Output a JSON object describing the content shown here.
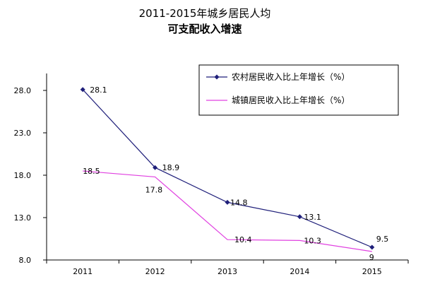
{
  "chart_data": {
    "type": "line",
    "title_lines": [
      "2011-2015年城乡居民人均",
      "可支配收入增速"
    ],
    "categories": [
      "2011",
      "2012",
      "2013",
      "2014",
      "2015"
    ],
    "y_ticks": [
      "8.0",
      "13.0",
      "18.0",
      "23.0",
      "28.0"
    ],
    "ylim": [
      8,
      30
    ],
    "legend_position": "top-right",
    "grid": false,
    "series": [
      {
        "name": "农村居民收入比上年增长（%）",
        "values": [
          28.1,
          18.9,
          14.8,
          13.1,
          9.5
        ],
        "labels": [
          "28.1",
          "18.9",
          "14.8",
          "13.1",
          "9.5"
        ],
        "color": "#1f1f7a",
        "marker": "diamond"
      },
      {
        "name": "城镇居民收入比上年增长（%）",
        "values": [
          18.5,
          17.8,
          10.4,
          10.3,
          9.0
        ],
        "labels": [
          "18.5",
          "17.8",
          "10.4",
          "10.3",
          "9"
        ],
        "color": "#e040e0",
        "marker": "none"
      }
    ]
  }
}
